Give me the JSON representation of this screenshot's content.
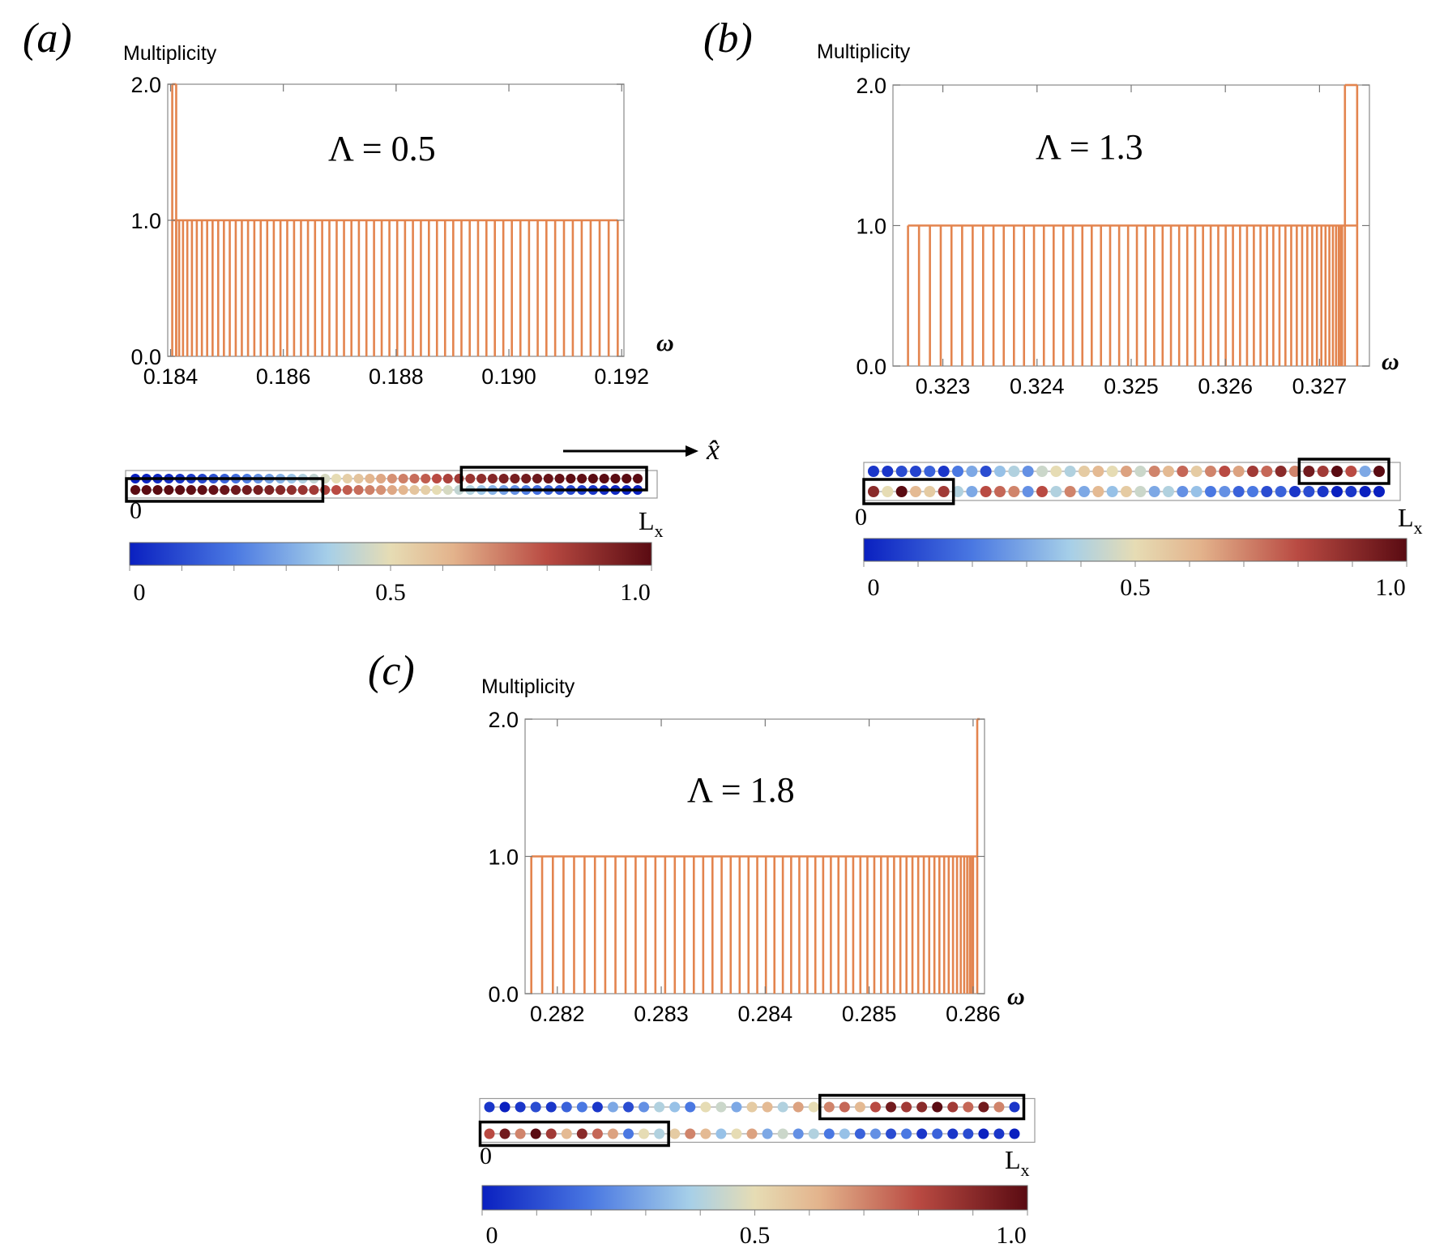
{
  "chart_data": [
    {
      "type": "bar",
      "panel": "(a)",
      "ylabel": "Multiplicity",
      "xlabel": "ω",
      "annotation": "Λ = 0.5",
      "xlim": [
        0.18395,
        0.19204
      ],
      "ylim": [
        0,
        2
      ],
      "xticks": [
        "0.184",
        "0.186",
        "0.188",
        "0.190",
        "0.192"
      ],
      "xtick_values": [
        0.184,
        0.186,
        0.188,
        0.19,
        0.192
      ],
      "yticks": [
        "0.0",
        "1.0",
        "2.0"
      ],
      "ytick_values": [
        0,
        1,
        2
      ],
      "degenerate_omega": [
        0.18403,
        0.1841
      ],
      "levels": {
        "n": 62,
        "from": 0.1841,
        "to": 0.19193,
        "density": "dense-left"
      },
      "sites": {
        "label_start": "0",
        "label_end": "L",
        "label_end_sub": "x",
        "axis_label": "x̂",
        "top_row": [
          0.0,
          0.01,
          0.02,
          0.03,
          0.05,
          0.07,
          0.09,
          0.12,
          0.15,
          0.18,
          0.21,
          0.25,
          0.28,
          0.32,
          0.36,
          0.4,
          0.43,
          0.47,
          0.5,
          0.54,
          0.57,
          0.61,
          0.64,
          0.68,
          0.71,
          0.74,
          0.77,
          0.8,
          0.83,
          0.85,
          0.87,
          0.89,
          0.91,
          0.93,
          0.94,
          0.95,
          0.96,
          0.97,
          0.98,
          0.99,
          0.99,
          1.0,
          1.0,
          1.0,
          1.0,
          1.0
        ],
        "bottom_row": [
          1.0,
          1.0,
          1.0,
          1.0,
          1.0,
          0.99,
          0.99,
          0.98,
          0.97,
          0.96,
          0.95,
          0.94,
          0.93,
          0.91,
          0.89,
          0.87,
          0.85,
          0.83,
          0.8,
          0.77,
          0.74,
          0.71,
          0.68,
          0.64,
          0.61,
          0.57,
          0.54,
          0.5,
          0.47,
          0.43,
          0.4,
          0.36,
          0.32,
          0.28,
          0.25,
          0.21,
          0.18,
          0.15,
          0.12,
          0.09,
          0.07,
          0.05,
          0.03,
          0.02,
          0.01,
          0.0
        ],
        "boxes": [
          {
            "row": "top",
            "from": 30,
            "to": 45
          },
          {
            "row": "bottom",
            "from": 0,
            "to": 16
          }
        ]
      },
      "colorbar": {
        "labels": [
          "0",
          "0.5",
          "1.0"
        ],
        "min": 0,
        "max": 1
      }
    },
    {
      "type": "bar",
      "panel": "(b)",
      "ylabel": "Multiplicity",
      "xlabel": "ω",
      "annotation": "Λ = 1.3",
      "xlim": [
        0.32247,
        0.32753
      ],
      "ylim": [
        0,
        2
      ],
      "xticks": [
        "0.323",
        "0.324",
        "0.325",
        "0.326",
        "0.327"
      ],
      "xtick_values": [
        0.323,
        0.324,
        0.325,
        0.326,
        0.327
      ],
      "yticks": [
        "0.0",
        "1.0",
        "2.0"
      ],
      "ytick_values": [
        0,
        1,
        2
      ],
      "degenerate_omega": [
        0.32727,
        0.3274
      ],
      "levels": {
        "n": 58,
        "from": 0.32263,
        "to": 0.32724,
        "density": "dense-right"
      },
      "sites": {
        "label_start": "0",
        "label_end": "L",
        "label_end_sub": "x",
        "top_row": [
          0.05,
          0.05,
          0.1,
          0.08,
          0.15,
          0.05,
          0.2,
          0.3,
          0.1,
          0.35,
          0.4,
          0.25,
          0.45,
          0.5,
          0.4,
          0.55,
          0.6,
          0.5,
          0.65,
          0.45,
          0.7,
          0.6,
          0.75,
          0.55,
          0.7,
          0.8,
          0.65,
          0.85,
          0.75,
          0.9,
          0.7,
          0.95,
          0.85,
          1.0,
          0.8,
          0.3,
          1.0
        ],
        "bottom_row": [
          0.9,
          0.5,
          1.0,
          0.6,
          0.55,
          0.85,
          0.4,
          0.3,
          0.8,
          0.75,
          0.7,
          0.25,
          0.8,
          0.4,
          0.7,
          0.3,
          0.6,
          0.35,
          0.55,
          0.45,
          0.3,
          0.4,
          0.25,
          0.35,
          0.2,
          0.25,
          0.15,
          0.2,
          0.1,
          0.15,
          0.05,
          0.1,
          0.05,
          0.0,
          0.05,
          0.0,
          0.0
        ],
        "boxes": [
          {
            "row": "top",
            "from": 31,
            "to": 36
          },
          {
            "row": "bottom",
            "from": 0,
            "to": 5
          }
        ]
      },
      "colorbar": {
        "labels": [
          "0",
          "0.5",
          "1.0"
        ],
        "min": 0,
        "max": 1
      }
    },
    {
      "type": "bar",
      "panel": "(c)",
      "ylabel": "Multiplicity",
      "xlabel": "ω",
      "annotation": "Λ = 1.8",
      "xlim": [
        0.28169,
        0.28611
      ],
      "ylim": [
        0,
        2
      ],
      "xticks": [
        "0.282",
        "0.283",
        "0.284",
        "0.285",
        "0.286"
      ],
      "xtick_values": [
        0.282,
        0.283,
        0.284,
        0.285,
        0.286
      ],
      "yticks": [
        "0.0",
        "1.0",
        "2.0"
      ],
      "ytick_values": [
        0,
        1,
        2
      ],
      "degenerate_omega": [
        0.28604
      ],
      "levels": {
        "n": 60,
        "from": 0.28175,
        "to": 0.286,
        "density": "dense-right"
      },
      "sites": {
        "label_start": "0",
        "label_end": "L",
        "label_end_sub": "x",
        "top_row": [
          0.05,
          0.0,
          0.05,
          0.1,
          0.05,
          0.15,
          0.2,
          0.05,
          0.3,
          0.1,
          0.25,
          0.4,
          0.35,
          0.2,
          0.5,
          0.45,
          0.3,
          0.55,
          0.6,
          0.4,
          0.65,
          0.5,
          0.7,
          0.75,
          0.6,
          0.8,
          0.95,
          0.85,
          0.9,
          1.0,
          0.85,
          0.75,
          0.95,
          0.7,
          0.05
        ],
        "bottom_row": [
          0.8,
          0.95,
          0.7,
          1.0,
          0.85,
          0.6,
          0.9,
          0.75,
          0.65,
          0.2,
          0.5,
          0.4,
          0.55,
          0.7,
          0.6,
          0.35,
          0.5,
          0.65,
          0.3,
          0.45,
          0.25,
          0.4,
          0.2,
          0.35,
          0.15,
          0.25,
          0.1,
          0.2,
          0.05,
          0.15,
          0.05,
          0.1,
          0.0,
          0.05,
          0.0
        ],
        "boxes": [
          {
            "row": "top",
            "from": 22,
            "to": 34
          },
          {
            "row": "bottom",
            "from": 0,
            "to": 11
          }
        ]
      },
      "colorbar": {
        "labels": [
          "0",
          "0.5",
          "1.0"
        ],
        "min": 0,
        "max": 1
      }
    }
  ]
}
